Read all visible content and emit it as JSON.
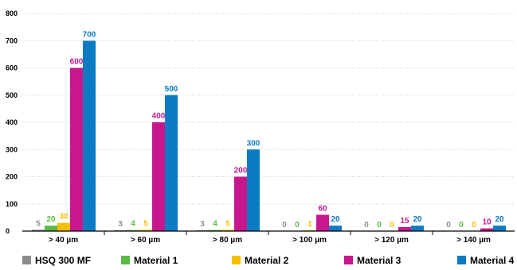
{
  "chart_data": {
    "type": "bar",
    "title": "",
    "xlabel": "",
    "ylabel": "",
    "ylim": [
      0,
      800
    ],
    "yticks": [
      0,
      100,
      200,
      300,
      400,
      500,
      600,
      700,
      800
    ],
    "grid": true,
    "legend_position": "bottom",
    "categories": [
      "> 40 µm",
      "> 60 µm",
      "> 80 µm",
      "> 100 µm",
      "> 120 µm",
      "> 140 µm"
    ],
    "series": [
      {
        "name": "HSQ 300 MF",
        "color": "#8c8c8c",
        "values": [
          5,
          3,
          3,
          0,
          0,
          0
        ]
      },
      {
        "name": "Material 1",
        "color": "#5ab945",
        "values": [
          20,
          4,
          4,
          0,
          0,
          0
        ]
      },
      {
        "name": "Material 2",
        "color": "#f5c000",
        "values": [
          30,
          5,
          5,
          1,
          0,
          0
        ]
      },
      {
        "name": "Material 3",
        "color": "#c8168c",
        "values": [
          600,
          400,
          200,
          60,
          15,
          10
        ]
      },
      {
        "name": "Material 4",
        "color": "#0b7cc4",
        "values": [
          700,
          500,
          300,
          20,
          20,
          20
        ]
      }
    ]
  }
}
